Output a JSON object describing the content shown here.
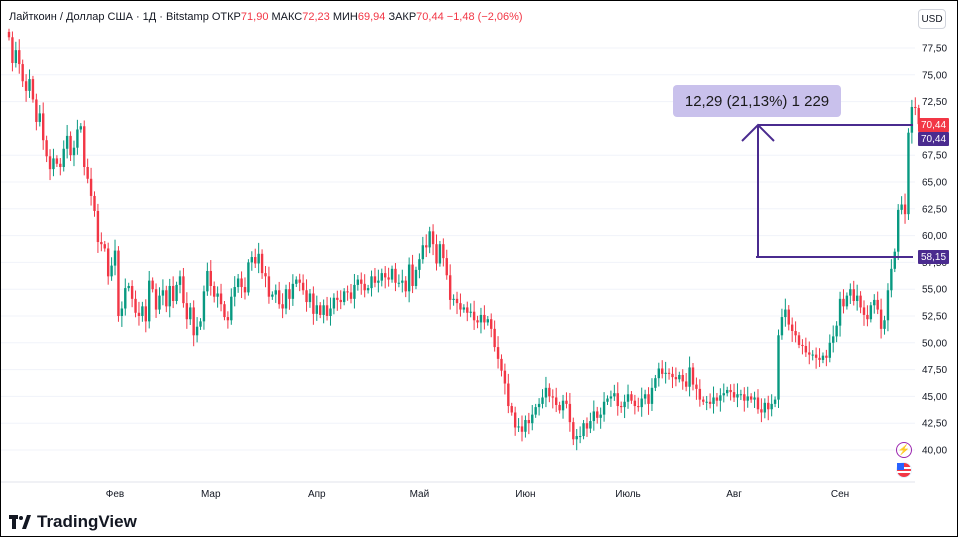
{
  "header": {
    "symbol": "Лайткоин / Доллар США · 1Д · Bitstamp",
    "open_label": "ОТКР",
    "open_value": "71,90",
    "high_label": "МАКС",
    "high_value": "72,23",
    "low_label": "МИН",
    "low_value": "69,94",
    "close_label": "ЗАКР",
    "close_value": "70,44",
    "change_value": "−1,48 (−2,06%)"
  },
  "currency_button": "USD",
  "measure_label": "12,29 (21,13%) 1 229",
  "price_tags": {
    "last_price": "70,44",
    "marker_price": "70,44",
    "start_price": "58,15"
  },
  "brand": "TradingView",
  "colors": {
    "up": "#089981",
    "down": "#f23645",
    "measure": "#4a2b8f",
    "measure_box": "#c9c1ec"
  },
  "chart_data": {
    "type": "candlestick",
    "ylim": [
      38.0,
      80.0
    ],
    "yticks": [
      "40,00",
      "42,50",
      "45,00",
      "47,50",
      "50,00",
      "52,50",
      "55,00",
      "57,50",
      "60,00",
      "62,50",
      "65,00",
      "67,50",
      "72,50",
      "75,00",
      "77,50"
    ],
    "ytick_values": [
      40,
      42.5,
      45,
      47.5,
      50,
      52.5,
      55,
      57.5,
      60,
      62.5,
      65,
      67.5,
      72.5,
      75,
      77.5
    ],
    "xticks": [
      "Фев",
      "Мар",
      "Апр",
      "Май",
      "Июн",
      "Июль",
      "Авг",
      "Сен"
    ],
    "xtick_days": [
      31,
      59,
      90,
      120,
      151,
      181,
      212,
      243
    ],
    "closes": [
      78.5,
      76.1,
      77.3,
      76.0,
      74.4,
      73.5,
      74.6,
      72.7,
      70.6,
      71.4,
      68.9,
      67.4,
      66.2,
      67.2,
      66.7,
      66.4,
      68.1,
      69.3,
      67.5,
      68.2,
      69.9,
      70.2,
      66.4,
      65.3,
      63.7,
      62.3,
      59.4,
      59.2,
      58.8,
      56.2,
      57.2,
      58.6,
      52.5,
      53.2,
      55.1,
      55.3,
      54.1,
      52.8,
      52.5,
      53.4,
      52.0,
      55.8,
      55.0,
      53.1,
      54.4,
      54.9,
      53.4,
      55.3,
      53.9,
      55.4,
      56.2,
      53.7,
      52.2,
      53.3,
      50.7,
      51.5,
      52.0,
      54.8,
      56.7,
      55.3,
      54.3,
      54.6,
      53.6,
      52.4,
      52.1,
      54.3,
      55.2,
      56.0,
      55.2,
      54.7,
      57.5,
      58.0,
      57.4,
      58.3,
      56.5,
      56.2,
      54.3,
      54.5,
      54.9,
      53.6,
      53.2,
      55.0,
      54.1,
      55.5,
      55.9,
      55.6,
      54.9,
      53.8,
      54.6,
      52.7,
      53.5,
      52.6,
      53.5,
      52.5,
      53.2,
      54.2,
      54.0,
      53.8,
      54.8,
      54.7,
      54.1,
      55.4,
      55.9,
      55.5,
      54.9,
      55.1,
      56.2,
      55.6,
      55.8,
      56.5,
      56.1,
      55.9,
      56.9,
      55.6,
      55.6,
      55.8,
      54.8,
      57.3,
      55.3,
      56.8,
      57.8,
      59.1,
      58.9,
      60.4,
      59.2,
      57.4,
      59.2,
      57.9,
      56.3,
      54.0,
      54.1,
      53.7,
      53.1,
      53.3,
      52.8,
      52.9,
      52.1,
      51.9,
      52.6,
      51.9,
      52.2,
      51.3,
      49.6,
      48.5,
      47.4,
      46.2,
      44.1,
      43.5,
      42.1,
      42.2,
      41.7,
      42.8,
      42.5,
      43.3,
      44.0,
      44.3,
      44.9,
      45.8,
      45.0,
      44.9,
      44.2,
      43.7,
      44.6,
      44.3,
      42.6,
      41.0,
      41.3,
      41.3,
      42.5,
      42.0,
      42.7,
      43.6,
      43.0,
      43.3,
      44.5,
      44.8,
      45.0,
      45.3,
      44.1,
      44.0,
      44.5,
      45.2,
      44.6,
      44.1,
      44.0,
      44.8,
      45.2,
      44.3,
      45.8,
      46.7,
      47.6,
      47.1,
      47.2,
      47.1,
      46.8,
      46.6,
      47.0,
      46.4,
      45.9,
      47.7,
      46.1,
      45.7,
      44.7,
      44.5,
      44.5,
      44.3,
      44.9,
      44.6,
      45.1,
      45.3,
      45.6,
      45.4,
      44.9,
      45.2,
      45.2,
      44.6,
      45.0,
      44.7,
      44.9,
      43.8,
      43.5,
      44.4,
      43.8,
      44.3,
      44.7,
      50.7,
      52.4,
      53.1,
      51.7,
      51.1,
      50.7,
      49.8,
      49.7,
      49.1,
      48.9,
      48.9,
      48.6,
      48.4,
      48.8,
      48.6,
      50.0,
      50.6,
      51.6,
      54.1,
      53.4,
      54.4,
      55.0,
      53.9,
      54.4,
      53.3,
      52.6,
      52.2,
      53.5,
      54.0,
      53.1,
      51.3,
      52.1,
      54.9,
      56.9,
      58.5,
      62.4,
      62.9,
      62.0,
      69.6,
      72.0,
      71.9,
      70.4
    ],
    "measure": {
      "start_price": 58.15,
      "end_price": 70.44,
      "change": "12,29",
      "percent": "21,13%",
      "bars": "1 229"
    }
  }
}
